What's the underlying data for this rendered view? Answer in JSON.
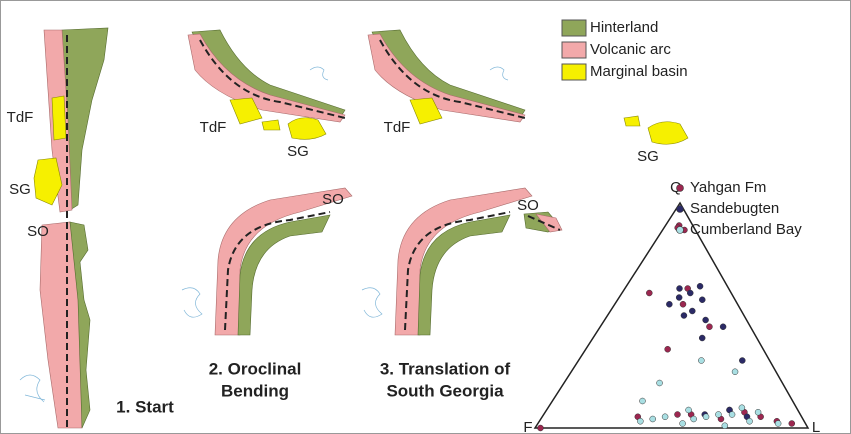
{
  "legend": {
    "items": [
      {
        "label": "Hinterland",
        "color": "#8fa65a"
      },
      {
        "label": "Volcanic arc",
        "color": "#f2a9aa"
      },
      {
        "label": "Marginal basin",
        "color": "#f6f000"
      }
    ]
  },
  "panels": [
    {
      "title_lines": [
        "1. Start"
      ],
      "labels": [
        "TdF",
        "SG",
        "SO"
      ]
    },
    {
      "title_lines": [
        "2. Oroclinal",
        "Bending"
      ],
      "labels": [
        "TdF",
        "SG",
        "SO"
      ]
    },
    {
      "title_lines": [
        "3. Translation of",
        "South Georgia"
      ],
      "labels": [
        "TdF",
        "SG",
        "SO"
      ]
    }
  ],
  "ternary": {
    "apices": [
      "Q",
      "F",
      "L"
    ],
    "series": [
      {
        "name": "Yahgan Fm",
        "color": "#9c2750",
        "points": [
          [
            90,
            5,
            5
          ],
          [
            88,
            4,
            8
          ],
          [
            89,
            6,
            5
          ],
          [
            60,
            30,
            10
          ],
          [
            55,
            20,
            25
          ],
          [
            62,
            15,
            23
          ],
          [
            45,
            15,
            40
          ],
          [
            35,
            35,
            30
          ],
          [
            5,
            60,
            35
          ],
          [
            6,
            40,
            54
          ],
          [
            4,
            30,
            66
          ],
          [
            8,
            25,
            67
          ],
          [
            5,
            15,
            80
          ],
          [
            3,
            10,
            87
          ],
          [
            6,
            45,
            49
          ],
          [
            2,
            5,
            93
          ],
          [
            7,
            20,
            73
          ],
          [
            0,
            98,
            2
          ]
        ]
      },
      {
        "name": "Sandebugten",
        "color": "#2b2a66",
        "points": [
          [
            60,
            15,
            25
          ],
          [
            58,
            20,
            22
          ],
          [
            62,
            18,
            20
          ],
          [
            52,
            18,
            30
          ],
          [
            55,
            25,
            20
          ],
          [
            48,
            15,
            37
          ],
          [
            40,
            20,
            40
          ],
          [
            45,
            10,
            45
          ],
          [
            30,
            10,
            60
          ],
          [
            63,
            10,
            27
          ],
          [
            57,
            12,
            31
          ],
          [
            50,
            22,
            28
          ],
          [
            8,
            25,
            67
          ],
          [
            5,
            20,
            75
          ],
          [
            6,
            35,
            59
          ]
        ]
      },
      {
        "name": "Cumberland Bay",
        "color": "#a9dfe3",
        "points": [
          [
            20,
            45,
            35
          ],
          [
            12,
            55,
            33
          ],
          [
            30,
            25,
            45
          ],
          [
            25,
            15,
            60
          ],
          [
            5,
            50,
            45
          ],
          [
            4,
            40,
            56
          ],
          [
            6,
            30,
            64
          ],
          [
            3,
            20,
            77
          ],
          [
            7,
            15,
            78
          ],
          [
            2,
            10,
            88
          ],
          [
            5,
            35,
            60
          ],
          [
            4,
            55,
            41
          ],
          [
            3,
            60,
            37
          ],
          [
            6,
            25,
            69
          ],
          [
            2,
            45,
            53
          ],
          [
            8,
            40,
            52
          ],
          [
            9,
            20,
            71
          ],
          [
            1,
            30,
            69
          ]
        ]
      }
    ]
  }
}
